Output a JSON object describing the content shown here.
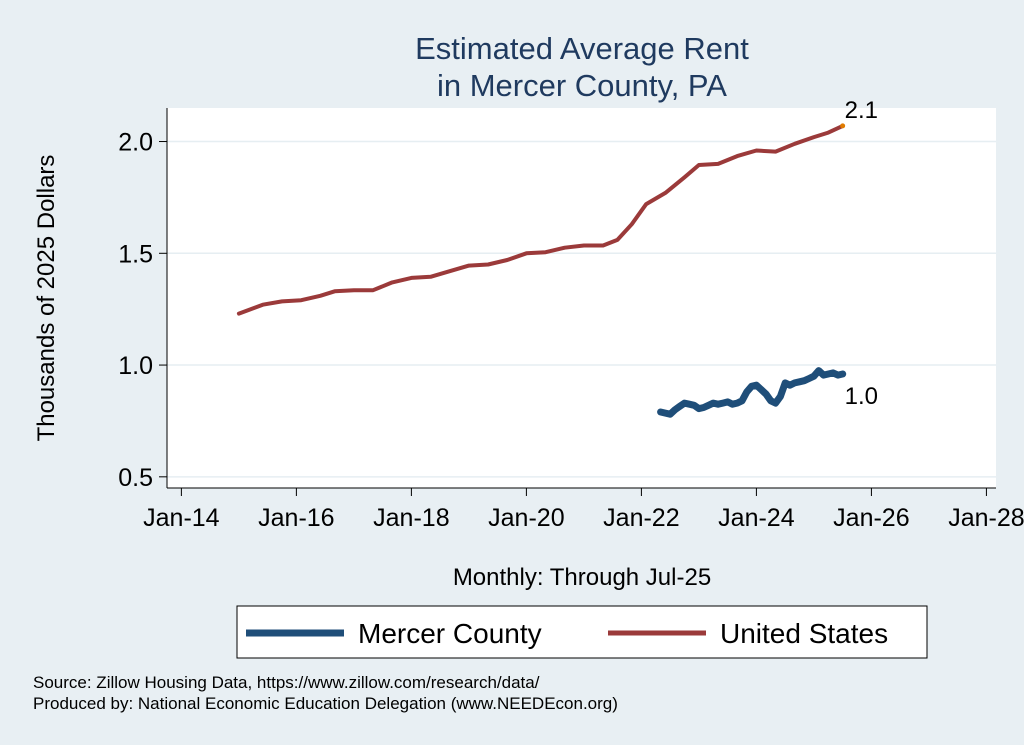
{
  "chart_data": {
    "type": "line",
    "title": [
      "Estimated Average Rent",
      "in Mercer County, PA"
    ],
    "xlabel": "Monthly: Through Jul-25",
    "ylabel": "Thousands of 2025 Dollars",
    "x_ticks": [
      "Jan-14",
      "Jan-16",
      "Jan-18",
      "Jan-20",
      "Jan-22",
      "Jan-24",
      "Jan-26",
      "Jan-28"
    ],
    "y_ticks": [
      "0.5",
      "1.0",
      "1.5",
      "2.0"
    ],
    "xlim": [
      "2013-10",
      "2028-03"
    ],
    "ylim": [
      0.45,
      2.15
    ],
    "grid": true,
    "legend_position": "bottom",
    "series": [
      {
        "name": "Mercer County",
        "color": "#1f4e79",
        "end_label": "1.0",
        "points": [
          [
            "2022-05",
            0.79
          ],
          [
            "2022-06",
            0.785
          ],
          [
            "2022-07",
            0.78
          ],
          [
            "2022-08",
            0.8
          ],
          [
            "2022-09",
            0.815
          ],
          [
            "2022-10",
            0.83
          ],
          [
            "2022-11",
            0.825
          ],
          [
            "2022-12",
            0.82
          ],
          [
            "2023-01",
            0.805
          ],
          [
            "2023-02",
            0.81
          ],
          [
            "2023-03",
            0.82
          ],
          [
            "2023-04",
            0.83
          ],
          [
            "2023-05",
            0.825
          ],
          [
            "2023-06",
            0.83
          ],
          [
            "2023-07",
            0.835
          ],
          [
            "2023-08",
            0.825
          ],
          [
            "2023-09",
            0.83
          ],
          [
            "2023-10",
            0.84
          ],
          [
            "2023-11",
            0.88
          ],
          [
            "2023-12",
            0.905
          ],
          [
            "2024-01",
            0.91
          ],
          [
            "2024-02",
            0.89
          ],
          [
            "2024-03",
            0.87
          ],
          [
            "2024-04",
            0.84
          ],
          [
            "2024-05",
            0.83
          ],
          [
            "2024-06",
            0.86
          ],
          [
            "2024-07",
            0.92
          ],
          [
            "2024-08",
            0.91
          ],
          [
            "2024-09",
            0.92
          ],
          [
            "2024-10",
            0.925
          ],
          [
            "2024-11",
            0.93
          ],
          [
            "2024-12",
            0.94
          ],
          [
            "2025-01",
            0.95
          ],
          [
            "2025-02",
            0.975
          ],
          [
            "2025-03",
            0.955
          ],
          [
            "2025-04",
            0.96
          ],
          [
            "2025-05",
            0.965
          ],
          [
            "2025-06",
            0.955
          ],
          [
            "2025-07",
            0.96
          ]
        ]
      },
      {
        "name": "United States",
        "color": "#9b3a3a",
        "end_label": "2.1",
        "end_marker_color": "#e07b00",
        "points": [
          [
            "2015-01",
            1.23
          ],
          [
            "2015-06",
            1.27
          ],
          [
            "2015-10",
            1.285
          ],
          [
            "2016-02",
            1.29
          ],
          [
            "2016-06",
            1.31
          ],
          [
            "2016-09",
            1.33
          ],
          [
            "2017-01",
            1.335
          ],
          [
            "2017-05",
            1.335
          ],
          [
            "2017-09",
            1.37
          ],
          [
            "2018-01",
            1.39
          ],
          [
            "2018-05",
            1.395
          ],
          [
            "2018-09",
            1.42
          ],
          [
            "2019-01",
            1.445
          ],
          [
            "2019-05",
            1.45
          ],
          [
            "2019-09",
            1.47
          ],
          [
            "2020-01",
            1.5
          ],
          [
            "2020-05",
            1.505
          ],
          [
            "2020-09",
            1.525
          ],
          [
            "2021-01",
            1.535
          ],
          [
            "2021-05",
            1.535
          ],
          [
            "2021-08",
            1.56
          ],
          [
            "2021-11",
            1.63
          ],
          [
            "2022-02",
            1.72
          ],
          [
            "2022-06",
            1.77
          ],
          [
            "2022-10",
            1.84
          ],
          [
            "2023-01",
            1.895
          ],
          [
            "2023-05",
            1.9
          ],
          [
            "2023-09",
            1.935
          ],
          [
            "2024-01",
            1.96
          ],
          [
            "2024-05",
            1.955
          ],
          [
            "2024-09",
            1.99
          ],
          [
            "2025-01",
            2.02
          ],
          [
            "2025-04",
            2.04
          ],
          [
            "2025-07",
            2.07
          ]
        ]
      }
    ]
  },
  "footer": {
    "source": "Source: Zillow Housing Data, https://www.zillow.com/research/data/",
    "produced": "Produced by: National Economic Education Delegation (www.NEEDEcon.org)"
  }
}
